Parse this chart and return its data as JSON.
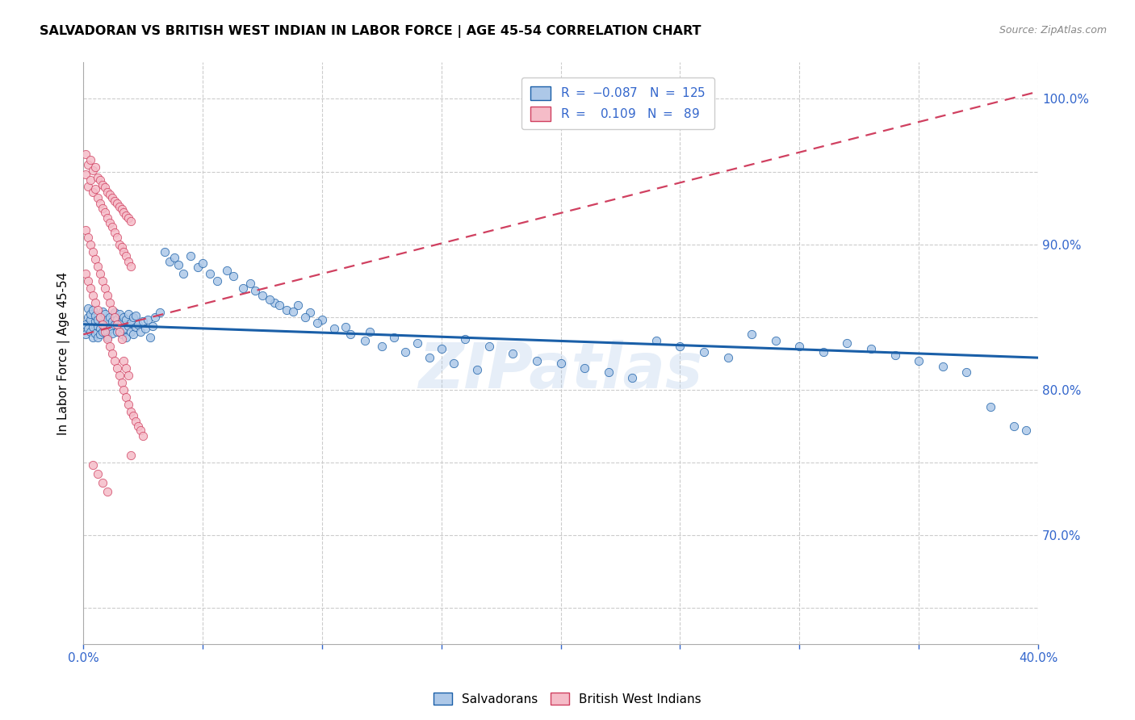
{
  "title": "SALVADORAN VS BRITISH WEST INDIAN IN LABOR FORCE | AGE 45-54 CORRELATION CHART",
  "source": "Source: ZipAtlas.com",
  "ylabel": "In Labor Force | Age 45-54",
  "y_ticks": [
    0.65,
    0.7,
    0.75,
    0.8,
    0.85,
    0.9,
    0.95,
    1.0
  ],
  "y_tick_labels": [
    "",
    "70.0%",
    "",
    "80.0%",
    "",
    "90.0%",
    "",
    "100.0%"
  ],
  "x_range": [
    0.0,
    0.4
  ],
  "y_range": [
    0.625,
    1.025
  ],
  "r_salvadoran": -0.087,
  "n_salvadoran": 125,
  "r_bwi": 0.109,
  "n_bwi": 89,
  "color_salvadoran": "#adc8e8",
  "color_salvadoran_line": "#1a5fa8",
  "color_bwi": "#f5bcc8",
  "color_bwi_line": "#d04060",
  "watermark": "ZIPatlas",
  "legend_label_1": "Salvadorans",
  "legend_label_2": "British West Indians",
  "sal_trend_x": [
    0.0,
    0.4
  ],
  "sal_trend_y": [
    0.845,
    0.822
  ],
  "bwi_trend_x": [
    0.0,
    0.4
  ],
  "bwi_trend_y": [
    0.838,
    1.005
  ],
  "salvadoran_x": [
    0.001,
    0.001,
    0.002,
    0.002,
    0.002,
    0.003,
    0.003,
    0.003,
    0.004,
    0.004,
    0.004,
    0.005,
    0.005,
    0.005,
    0.006,
    0.006,
    0.006,
    0.007,
    0.007,
    0.007,
    0.008,
    0.008,
    0.008,
    0.009,
    0.009,
    0.01,
    0.01,
    0.01,
    0.011,
    0.011,
    0.012,
    0.012,
    0.013,
    0.013,
    0.014,
    0.014,
    0.015,
    0.015,
    0.016,
    0.016,
    0.017,
    0.017,
    0.018,
    0.018,
    0.019,
    0.019,
    0.02,
    0.02,
    0.021,
    0.021,
    0.022,
    0.022,
    0.023,
    0.024,
    0.025,
    0.026,
    0.027,
    0.028,
    0.029,
    0.03,
    0.032,
    0.034,
    0.036,
    0.038,
    0.04,
    0.042,
    0.045,
    0.048,
    0.05,
    0.053,
    0.056,
    0.06,
    0.063,
    0.067,
    0.07,
    0.075,
    0.08,
    0.085,
    0.09,
    0.095,
    0.1,
    0.11,
    0.12,
    0.13,
    0.14,
    0.15,
    0.16,
    0.17,
    0.18,
    0.19,
    0.2,
    0.21,
    0.22,
    0.23,
    0.24,
    0.25,
    0.26,
    0.27,
    0.28,
    0.29,
    0.3,
    0.31,
    0.32,
    0.33,
    0.34,
    0.35,
    0.36,
    0.37,
    0.38,
    0.39,
    0.395,
    0.072,
    0.078,
    0.082,
    0.088,
    0.093,
    0.098,
    0.105,
    0.112,
    0.118,
    0.125,
    0.135,
    0.145,
    0.155,
    0.165
  ],
  "salvadoran_y": [
    0.845,
    0.838,
    0.85,
    0.842,
    0.856,
    0.848,
    0.84,
    0.852,
    0.843,
    0.836,
    0.855,
    0.847,
    0.839,
    0.851,
    0.844,
    0.836,
    0.848,
    0.85,
    0.842,
    0.838,
    0.846,
    0.854,
    0.84,
    0.852,
    0.844,
    0.848,
    0.84,
    0.836,
    0.85,
    0.842,
    0.847,
    0.839,
    0.853,
    0.845,
    0.848,
    0.84,
    0.852,
    0.844,
    0.838,
    0.846,
    0.85,
    0.842,
    0.836,
    0.848,
    0.852,
    0.844,
    0.84,
    0.846,
    0.838,
    0.85,
    0.843,
    0.851,
    0.845,
    0.84,
    0.847,
    0.842,
    0.848,
    0.836,
    0.844,
    0.85,
    0.853,
    0.895,
    0.888,
    0.891,
    0.886,
    0.88,
    0.892,
    0.884,
    0.887,
    0.88,
    0.875,
    0.882,
    0.878,
    0.87,
    0.873,
    0.865,
    0.86,
    0.855,
    0.858,
    0.853,
    0.848,
    0.843,
    0.84,
    0.836,
    0.832,
    0.828,
    0.835,
    0.83,
    0.825,
    0.82,
    0.818,
    0.815,
    0.812,
    0.808,
    0.834,
    0.83,
    0.826,
    0.822,
    0.838,
    0.834,
    0.83,
    0.826,
    0.832,
    0.828,
    0.824,
    0.82,
    0.816,
    0.812,
    0.788,
    0.775,
    0.772,
    0.868,
    0.862,
    0.858,
    0.854,
    0.85,
    0.846,
    0.842,
    0.838,
    0.834,
    0.83,
    0.826,
    0.822,
    0.818,
    0.814
  ],
  "bwi_x": [
    0.001,
    0.001,
    0.002,
    0.002,
    0.003,
    0.003,
    0.004,
    0.004,
    0.005,
    0.005,
    0.006,
    0.006,
    0.007,
    0.007,
    0.008,
    0.008,
    0.009,
    0.009,
    0.01,
    0.01,
    0.011,
    0.011,
    0.012,
    0.012,
    0.013,
    0.013,
    0.014,
    0.014,
    0.015,
    0.015,
    0.016,
    0.016,
    0.017,
    0.017,
    0.018,
    0.018,
    0.019,
    0.019,
    0.02,
    0.02,
    0.001,
    0.002,
    0.003,
    0.004,
    0.005,
    0.006,
    0.007,
    0.008,
    0.009,
    0.01,
    0.011,
    0.012,
    0.013,
    0.014,
    0.015,
    0.016,
    0.017,
    0.018,
    0.019,
    0.02,
    0.021,
    0.022,
    0.023,
    0.024,
    0.025,
    0.001,
    0.002,
    0.003,
    0.004,
    0.005,
    0.006,
    0.007,
    0.008,
    0.009,
    0.01,
    0.011,
    0.012,
    0.013,
    0.014,
    0.015,
    0.016,
    0.017,
    0.018,
    0.019,
    0.02,
    0.004,
    0.006,
    0.008,
    0.01
  ],
  "bwi_y": [
    0.962,
    0.948,
    0.955,
    0.94,
    0.958,
    0.944,
    0.951,
    0.936,
    0.953,
    0.938,
    0.946,
    0.932,
    0.944,
    0.928,
    0.941,
    0.925,
    0.939,
    0.922,
    0.936,
    0.918,
    0.934,
    0.915,
    0.932,
    0.912,
    0.93,
    0.908,
    0.928,
    0.905,
    0.926,
    0.9,
    0.924,
    0.898,
    0.922,
    0.895,
    0.92,
    0.892,
    0.918,
    0.888,
    0.916,
    0.885,
    0.88,
    0.875,
    0.87,
    0.865,
    0.86,
    0.855,
    0.85,
    0.845,
    0.84,
    0.835,
    0.83,
    0.825,
    0.82,
    0.815,
    0.81,
    0.805,
    0.8,
    0.795,
    0.79,
    0.785,
    0.782,
    0.778,
    0.775,
    0.772,
    0.768,
    0.91,
    0.905,
    0.9,
    0.895,
    0.89,
    0.885,
    0.88,
    0.875,
    0.87,
    0.865,
    0.86,
    0.855,
    0.85,
    0.845,
    0.84,
    0.835,
    0.82,
    0.815,
    0.81,
    0.755,
    0.748,
    0.742,
    0.736,
    0.73
  ]
}
